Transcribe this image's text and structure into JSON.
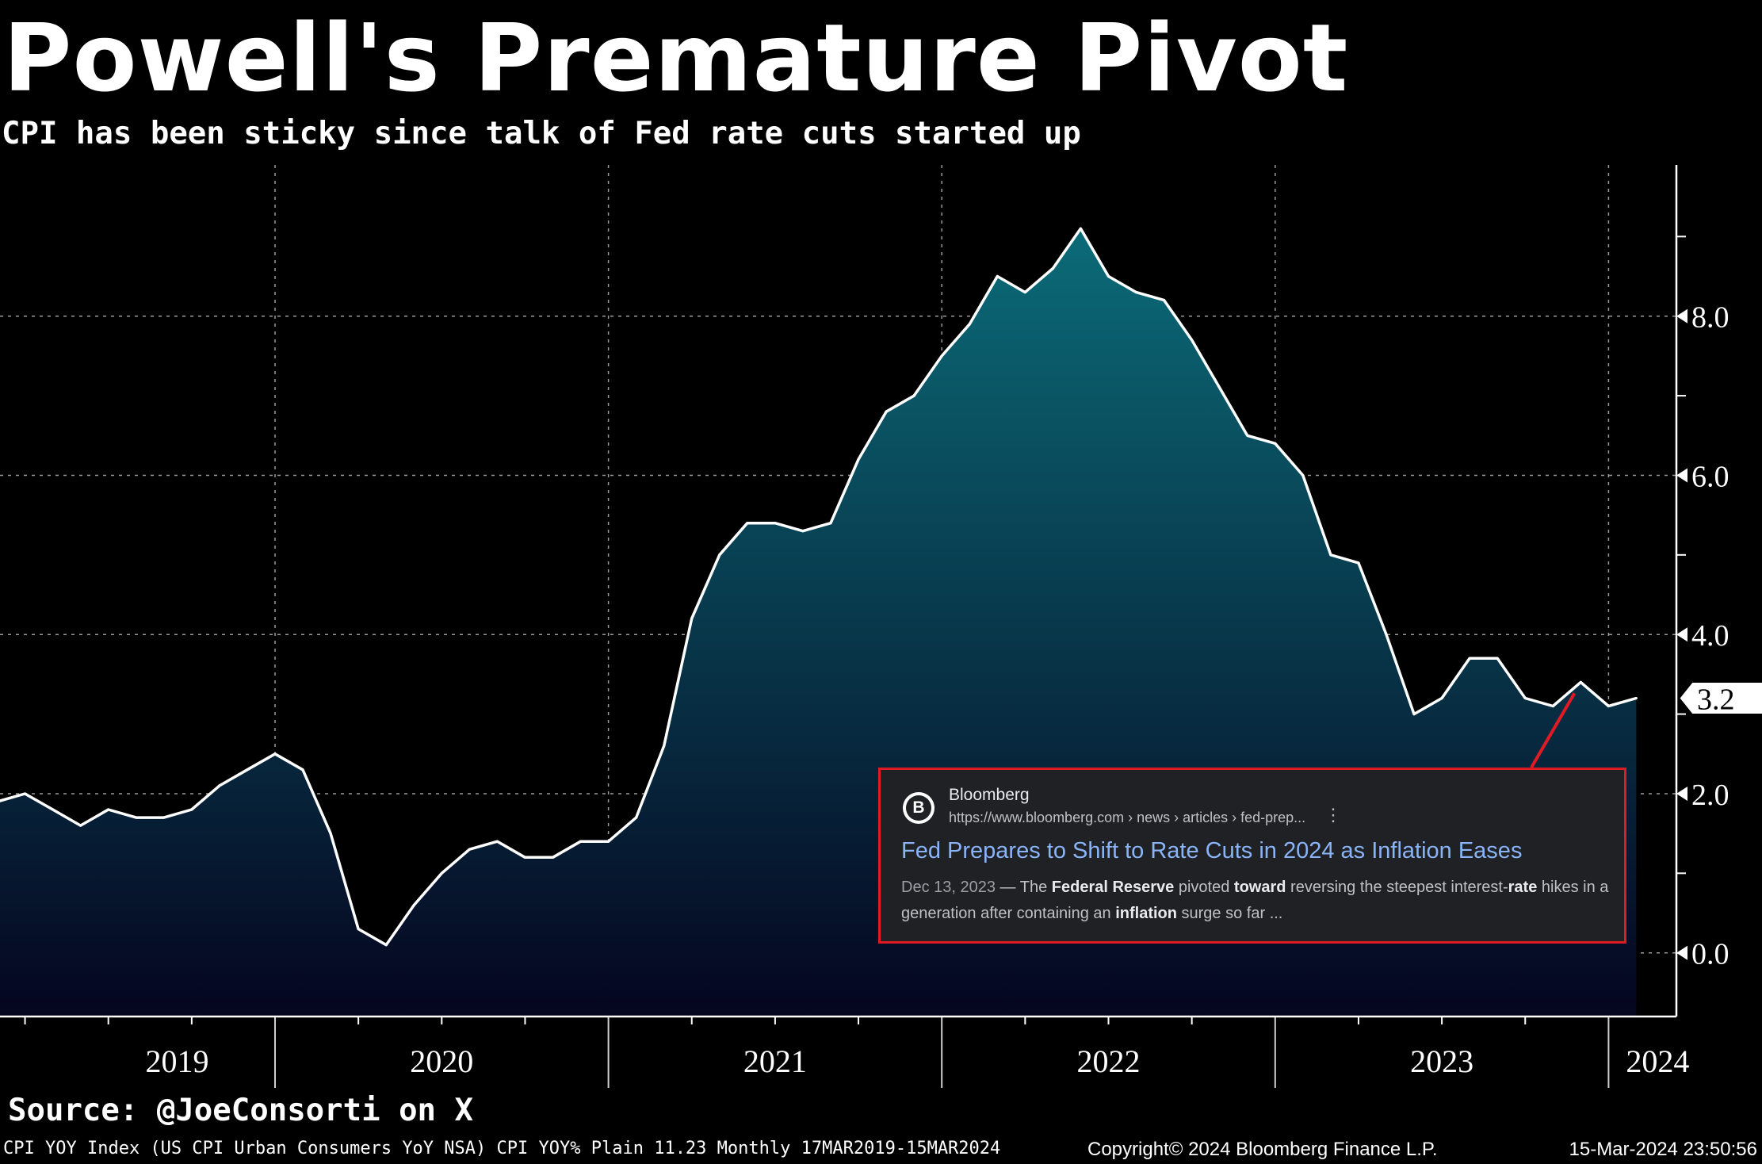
{
  "title": "Powell's Premature Pivot",
  "subtitle": "CPI has been sticky since talk of Fed rate cuts started up",
  "source": "Source: @JoeConsorti on X",
  "footer": {
    "left": "CPI YOY Index (US CPI Urban Consumers YoY NSA) CPI YOY% Plain 11.23  Monthly 17MAR2019-15MAR2024",
    "middle": "Copyright© 2024 Bloomberg Finance L.P.",
    "right": "15-Mar-2024 23:50:56"
  },
  "colors": {
    "background": "#000000",
    "area_top": "#0b6b78",
    "area_bottom": "#05051f",
    "line": "#ffffff",
    "card_border": "#e01b24",
    "card_bg": "#202124",
    "headline": "#8ab4f8"
  },
  "search_result": {
    "site_name": "Bloomberg",
    "favicon_letter": "B",
    "url": "https://www.bloomberg.com › news › articles › fed-prep...",
    "menu_icon": "more-vert-icon",
    "headline": "Fed Prepares to Shift to Rate Cuts in 2024 as Inflation Eases",
    "date": "Dec 13, 2023",
    "snippet_parts": [
      {
        "text": " — The ",
        "bold": false
      },
      {
        "text": "Federal Reserve",
        "bold": true
      },
      {
        "text": " pivoted ",
        "bold": false
      },
      {
        "text": "toward",
        "bold": true
      },
      {
        "text": " reversing the steepest interest-",
        "bold": false
      },
      {
        "text": "rate",
        "bold": true
      },
      {
        "text": " hikes in a generation after containing an ",
        "bold": false
      },
      {
        "text": "inflation",
        "bold": true
      },
      {
        "text": " surge so far ...",
        "bold": false
      }
    ]
  },
  "chart_data": {
    "type": "area",
    "title": "Powell's Premature Pivot",
    "subtitle": "CPI has been sticky since talk of Fed rate cuts started up",
    "x_start": "2019-03",
    "x_end": "2024-02",
    "frequency": "monthly",
    "x_tick_labels": [
      "2019",
      "2020",
      "2021",
      "2022",
      "2023",
      "2024"
    ],
    "y_ticks": [
      "8.0",
      "6.0",
      "4.0",
      "2.0",
      "0.0"
    ],
    "ylim": [
      -0.8,
      9.9
    ],
    "y_axis_side": "right",
    "grid": true,
    "last_value_label": "3.2",
    "series": [
      {
        "values": [
          1.9,
          2.0,
          1.8,
          1.6,
          1.8,
          1.7,
          1.7,
          1.8,
          2.1,
          2.3,
          2.5,
          2.3,
          1.5,
          0.3,
          0.1,
          0.6,
          1.0,
          1.3,
          1.4,
          1.2,
          1.2,
          1.4,
          1.4,
          1.7,
          2.6,
          4.2,
          5.0,
          5.4,
          5.4,
          5.3,
          5.4,
          6.2,
          6.8,
          7.0,
          7.5,
          7.9,
          8.5,
          8.3,
          8.6,
          9.1,
          8.5,
          8.3,
          8.2,
          7.7,
          7.1,
          6.5,
          6.4,
          6.0,
          5.0,
          4.9,
          4.0,
          3.0,
          3.2,
          3.7,
          3.7,
          3.2,
          3.1,
          3.4,
          3.1,
          3.2
        ]
      }
    ]
  }
}
